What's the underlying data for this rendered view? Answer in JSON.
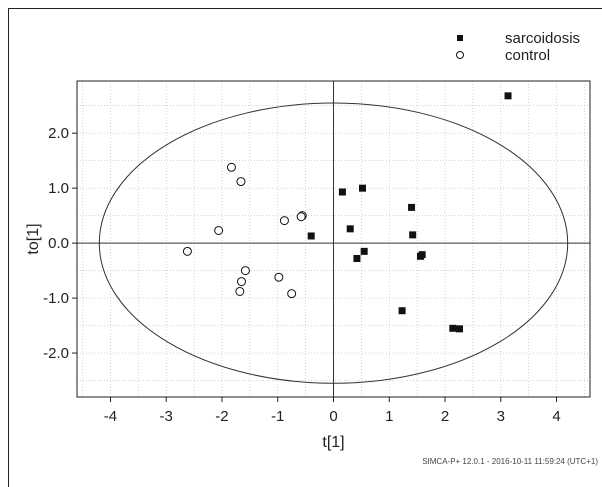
{
  "chart_data": {
    "type": "scatter",
    "xlabel": "t[1]",
    "ylabel": "to[1]",
    "xlim": [
      -4.6,
      4.6
    ],
    "ylim": [
      -2.8,
      2.95
    ],
    "xticks": [
      -4,
      -3,
      -2,
      -1,
      0,
      1,
      2,
      3,
      4
    ],
    "yticks": [
      -2.0,
      -1.0,
      0.0,
      1.0,
      2.0
    ],
    "xtick_labels": [
      "-4",
      "-3",
      "-2",
      "-1",
      "0",
      "1",
      "2",
      "3",
      "4"
    ],
    "ytick_labels": [
      "-2.0",
      "-1.0",
      "0.0",
      "1.0",
      "2.0"
    ],
    "grid": true,
    "legend_position": "top-right",
    "ellipse": {
      "x_radius": 4.2,
      "y_radius": 2.55
    },
    "series": [
      {
        "name": "sarcoidosis",
        "marker": "filled-square",
        "points": [
          {
            "x": 3.13,
            "y": 2.68
          },
          {
            "x": 0.16,
            "y": 0.93
          },
          {
            "x": 0.52,
            "y": 1.0
          },
          {
            "x": 1.4,
            "y": 0.65
          },
          {
            "x": 0.3,
            "y": 0.26
          },
          {
            "x": -0.4,
            "y": 0.13
          },
          {
            "x": 1.42,
            "y": 0.15
          },
          {
            "x": 0.55,
            "y": -0.15
          },
          {
            "x": 0.42,
            "y": -0.28
          },
          {
            "x": 1.56,
            "y": -0.24
          },
          {
            "x": 1.59,
            "y": -0.21
          },
          {
            "x": 1.23,
            "y": -1.23
          },
          {
            "x": 2.14,
            "y": -1.55
          },
          {
            "x": 2.26,
            "y": -1.56
          }
        ]
      },
      {
        "name": "control",
        "marker": "open-circle",
        "points": [
          {
            "x": -1.83,
            "y": 1.38
          },
          {
            "x": -1.66,
            "y": 1.12
          },
          {
            "x": -0.56,
            "y": 0.5
          },
          {
            "x": -0.58,
            "y": 0.48
          },
          {
            "x": -0.88,
            "y": 0.41
          },
          {
            "x": -2.06,
            "y": 0.23
          },
          {
            "x": -2.62,
            "y": -0.15
          },
          {
            "x": -1.58,
            "y": -0.5
          },
          {
            "x": -1.65,
            "y": -0.7
          },
          {
            "x": -1.68,
            "y": -0.88
          },
          {
            "x": -0.98,
            "y": -0.62
          },
          {
            "x": -0.75,
            "y": -0.92
          }
        ]
      }
    ],
    "footer": "SIMCA-P+ 12.0.1 - 2016-10-11 11:59:24 (UTC+1)"
  }
}
